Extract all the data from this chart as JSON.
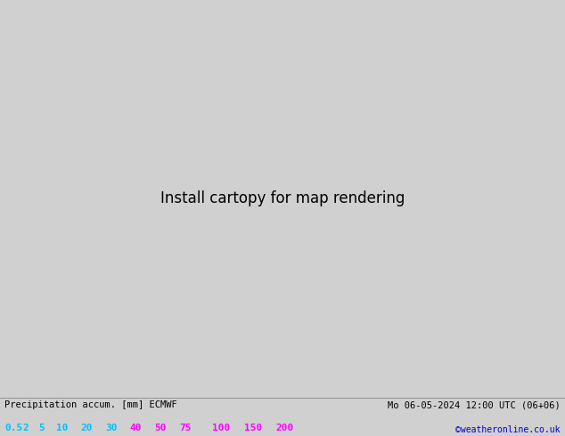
{
  "title_left": "Precipitation accum. [mm] ECMWF",
  "title_right": "Mo 06-05-2024 12:00 UTC (06+06)",
  "credit": "©weatheronline.co.uk",
  "legend_values": [
    "0.5",
    "2",
    "5",
    "10",
    "20",
    "30",
    "40",
    "50",
    "75",
    "100",
    "150",
    "200"
  ],
  "legend_text_colors": [
    "#00BFFF",
    "#00BFFF",
    "#00BFFF",
    "#00BFFF",
    "#00BFFF",
    "#00BFFF",
    "#FF00FF",
    "#FF00FF",
    "#FF00FF",
    "#FF00FF",
    "#FF00FF",
    "#FF00FF"
  ],
  "bg_color": "#d0d0d0",
  "ocean_color": "#c8dce8",
  "land_color": "#c8e8a0",
  "land_color_pale": "#d8eab8",
  "bottom_bar_color": "#ffffff",
  "bottom_text_color": "#000000",
  "credit_color": "#0000CC",
  "fig_width": 6.34,
  "fig_height": 4.9,
  "map_extent": [
    0,
    40,
    52,
    73
  ],
  "prec_colors": {
    "05": "#b0e8ff",
    "2": "#80d0f0",
    "5": "#50c0e8",
    "10": "#20a8d8",
    "20": "#c8f0a0",
    "30": "#a0e060",
    "40": "#f0f040",
    "50": "#f0c000",
    "75": "#f08000",
    "100": "#f04040",
    "150": "#f000f0",
    "200": "#a000c0"
  }
}
